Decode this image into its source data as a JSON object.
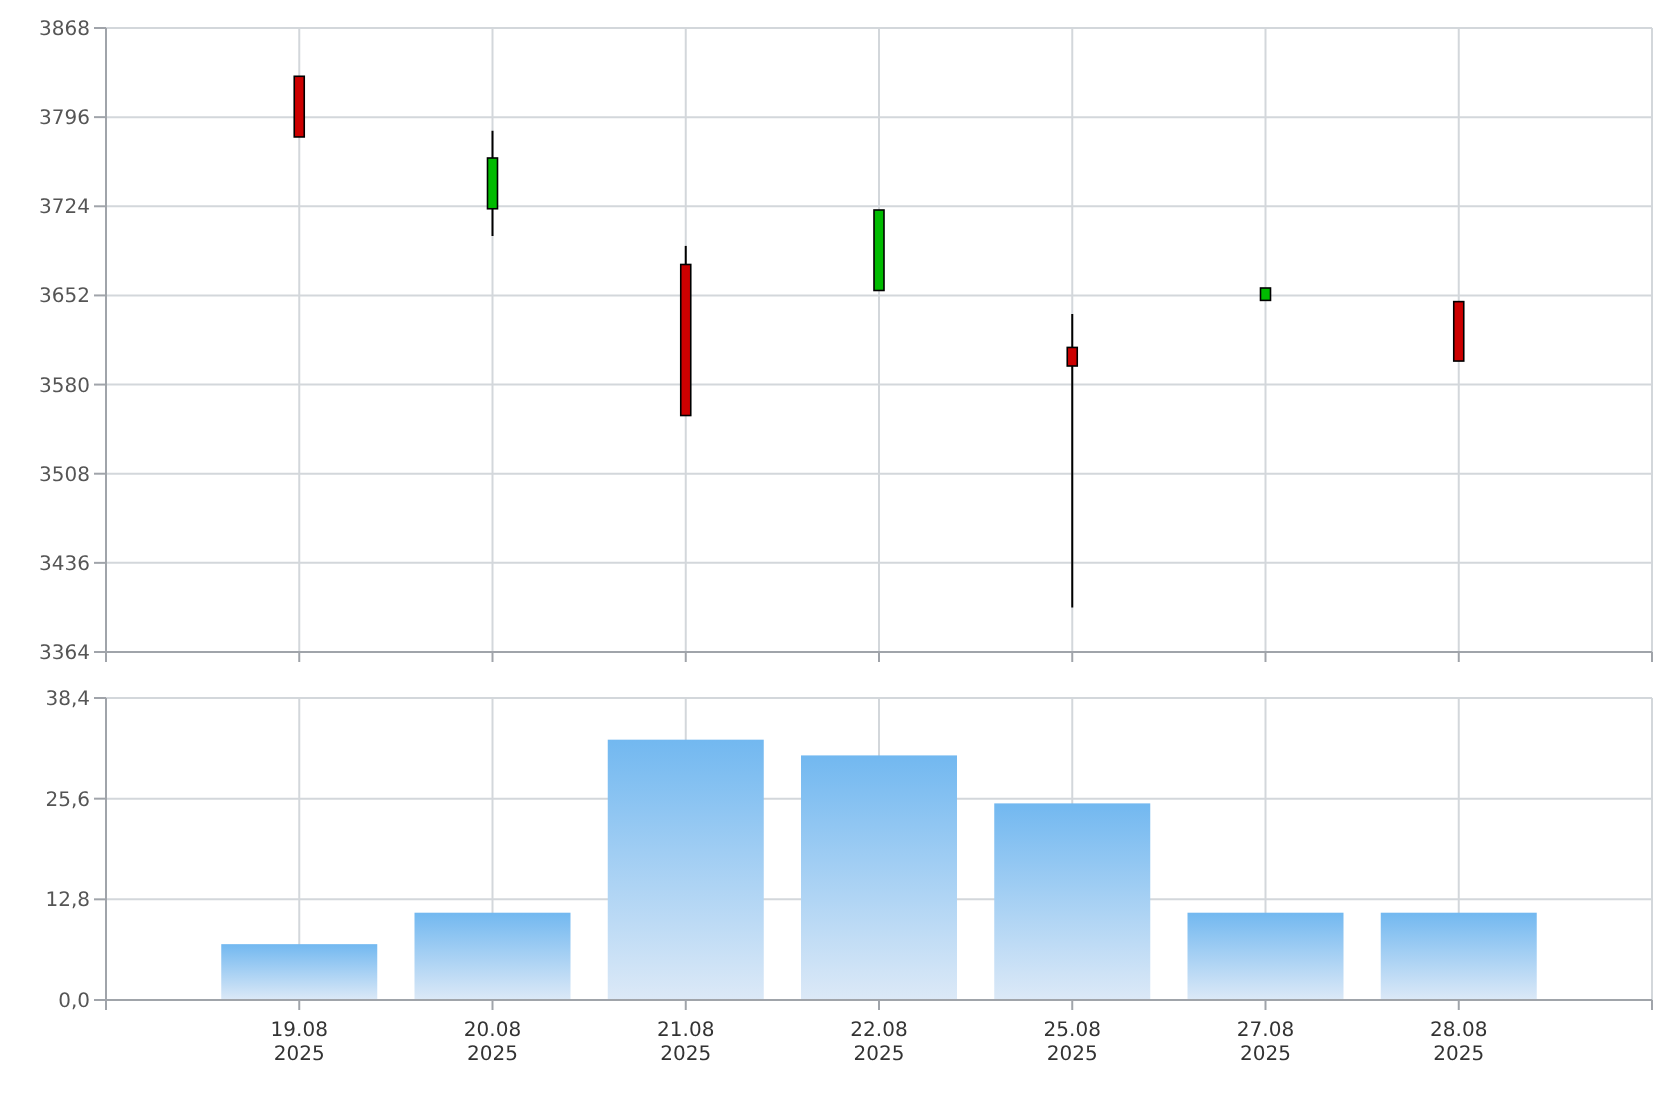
{
  "chart_data": [
    {
      "type": "candlestick",
      "categories": [
        null,
        null,
        null,
        null,
        null,
        null,
        null
      ],
      "ohlc": [
        [
          3829,
          3829,
          3780,
          3780
        ],
        [
          3722,
          3785,
          3700,
          3763
        ],
        [
          3677,
          3692,
          3555,
          3555
        ],
        [
          3656,
          3721,
          3656,
          3721
        ],
        [
          3610,
          3637,
          3400,
          3595
        ],
        [
          3648,
          3658,
          3648,
          3658
        ],
        [
          3647,
          3647,
          3599,
          3599
        ]
      ],
      "colors": [
        "#cc0000",
        "#00bb00",
        "#cc0000",
        "#00bb00",
        "#cc0000",
        "#00bb00",
        "#cc0000"
      ],
      "ylim": [
        3364,
        3868
      ],
      "yticks": [
        3364,
        3436,
        3508,
        3580,
        3652,
        3724,
        3796,
        3868
      ],
      "grid": true,
      "tick_labels": "y"
    },
    {
      "type": "bar",
      "categories": [
        "19.08\n2025",
        "20.08\n2025",
        "21.08\n2025",
        "22.08\n2025",
        "25.08\n2025",
        "27.08\n2025",
        "28.08\n2025"
      ],
      "values": [
        7.1,
        11.1,
        33.1,
        31.1,
        25.0,
        11.1,
        11.1
      ],
      "color": "#72b8f0",
      "ylim": [
        0,
        38.4
      ],
      "yticks": [
        {
          "value": 0,
          "label": "0,0"
        },
        {
          "value": 12.8,
          "label": "12,8"
        },
        {
          "value": 25.6,
          "label": "25,6"
        },
        {
          "value": 38.4,
          "label": "38,4"
        }
      ],
      "grid": true
    }
  ]
}
